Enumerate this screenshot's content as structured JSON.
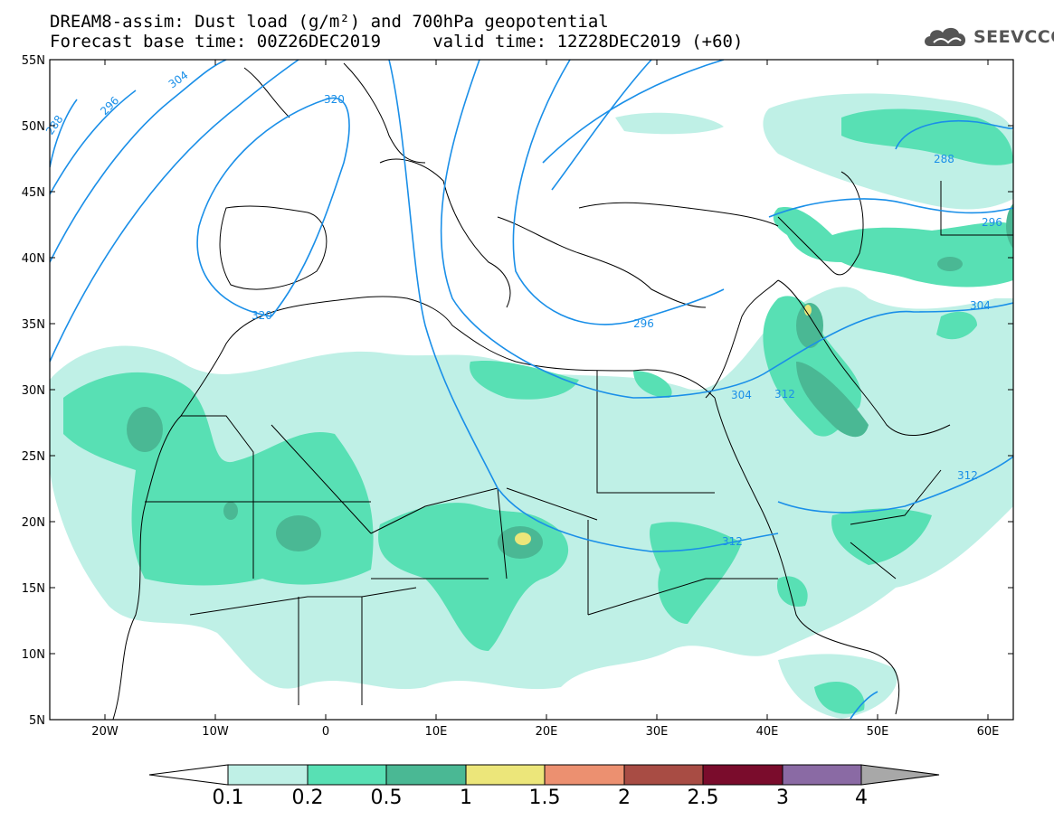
{
  "title": {
    "line1": "DREAM8-assim: Dust load (g/m²) and 700hPa geopotential",
    "line2": "Forecast base time: 00Z26DEC2019     valid time: 12Z28DEC2019 (+60)"
  },
  "logo": {
    "text": "SEEVCCC",
    "icon": "cloud-icon"
  },
  "axes": {
    "lat_labels": [
      "55N",
      "50N",
      "45N",
      "40N",
      "35N",
      "30N",
      "25N",
      "20N",
      "15N",
      "10N",
      "5N"
    ],
    "lon_labels": [
      "20W",
      "10W",
      "0",
      "10E",
      "20E",
      "30E",
      "40E",
      "50E",
      "60E"
    ]
  },
  "contours": {
    "color": "#1a8fe8",
    "labels": [
      "288",
      "296",
      "304",
      "312",
      "320",
      "296",
      "304",
      "312",
      "320",
      "288",
      "296",
      "304",
      "312"
    ]
  },
  "colorbar": {
    "ticks": [
      "0.1",
      "0.2",
      "0.5",
      "1",
      "1.5",
      "2",
      "2.5",
      "3",
      "4"
    ],
    "colors": [
      "#bff0e6",
      "#58e0b4",
      "#4ab894",
      "#ece67a",
      "#ec9070",
      "#a84c44",
      "#7a0c2c",
      "#8a6aa4",
      "#a8a8a8"
    ]
  },
  "dust_colors": {
    "light": "#bff0e6",
    "medium": "#58e0b4",
    "dark": "#4ab894",
    "yellow": "#ece67a"
  }
}
